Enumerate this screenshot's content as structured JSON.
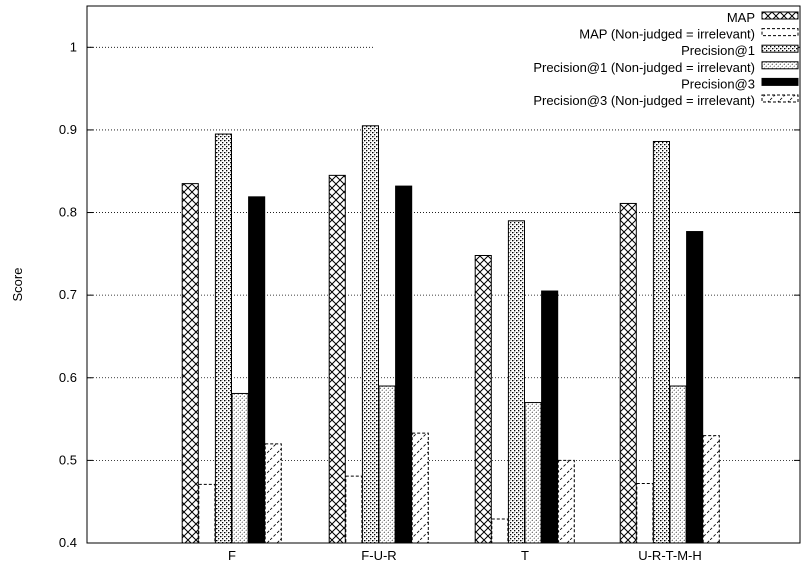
{
  "chart_data": {
    "type": "bar",
    "title": "",
    "xlabel": "",
    "ylabel": "Score",
    "ylim": [
      0.4,
      1.05
    ],
    "yticks": [
      "0.4",
      "0.5",
      "0.6",
      "0.7",
      "0.8",
      "0.9",
      "1"
    ],
    "grid": "horizontal dotted",
    "legend_position": "top-right",
    "categories": [
      "F",
      "F-U-R",
      "T",
      "U-R-T-M-H"
    ],
    "series": [
      {
        "name": "MAP",
        "pattern": "crosshatch",
        "values": [
          0.835,
          0.845,
          0.748,
          0.811
        ]
      },
      {
        "name": "MAP (Non-judged = irrelevant)",
        "pattern": "dashed-outline",
        "values": [
          0.471,
          0.481,
          0.429,
          0.472
        ]
      },
      {
        "name": "Precision@1",
        "pattern": "dense-dots",
        "values": [
          0.895,
          0.905,
          0.79,
          0.886
        ]
      },
      {
        "name": "Precision@1 (Non-judged = irrelevant)",
        "pattern": "fine-dots",
        "values": [
          0.581,
          0.59,
          0.57,
          0.59
        ]
      },
      {
        "name": "Precision@3",
        "pattern": "solid-black",
        "values": [
          0.819,
          0.832,
          0.705,
          0.777
        ]
      },
      {
        "name": "Precision@3 (Non-judged = irrelevant)",
        "pattern": "sparse-diagonal-dashed",
        "values": [
          0.52,
          0.533,
          0.5,
          0.53
        ]
      }
    ]
  }
}
